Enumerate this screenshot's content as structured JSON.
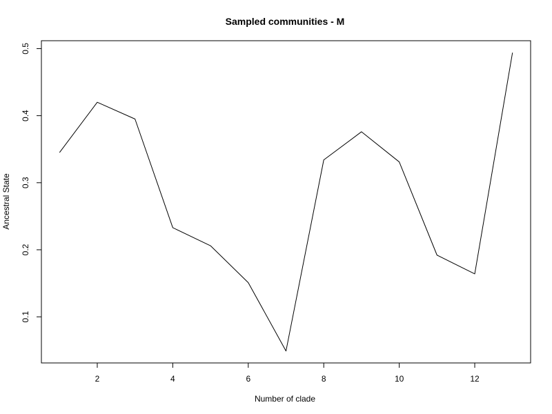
{
  "chart_data": {
    "type": "line",
    "title": "Sampled communities - M",
    "xlabel": "Number of clade",
    "ylabel": "Ancestral State",
    "x": [
      1,
      2,
      3,
      4,
      5,
      6,
      7,
      8,
      9,
      10,
      11,
      12,
      13
    ],
    "series": [
      {
        "values": [
          0.345,
          0.42,
          0.395,
          0.233,
          0.206,
          0.151,
          0.049,
          0.334,
          0.376,
          0.331,
          0.192,
          0.164,
          0.494
        ]
      }
    ],
    "xlim": [
      0.52,
      13.48
    ],
    "ylim": [
      0.0312,
      0.5118
    ],
    "x_ticks": [
      2,
      4,
      6,
      8,
      10,
      12
    ],
    "x_tick_labels": [
      "2",
      "4",
      "6",
      "8",
      "10",
      "12"
    ],
    "y_ticks": [
      0.1,
      0.2,
      0.3,
      0.4,
      0.5
    ],
    "y_tick_labels": [
      "0.1",
      "0.2",
      "0.3",
      "0.4",
      "0.5"
    ],
    "line_color": "#000000",
    "grid": false,
    "legend": "none"
  }
}
